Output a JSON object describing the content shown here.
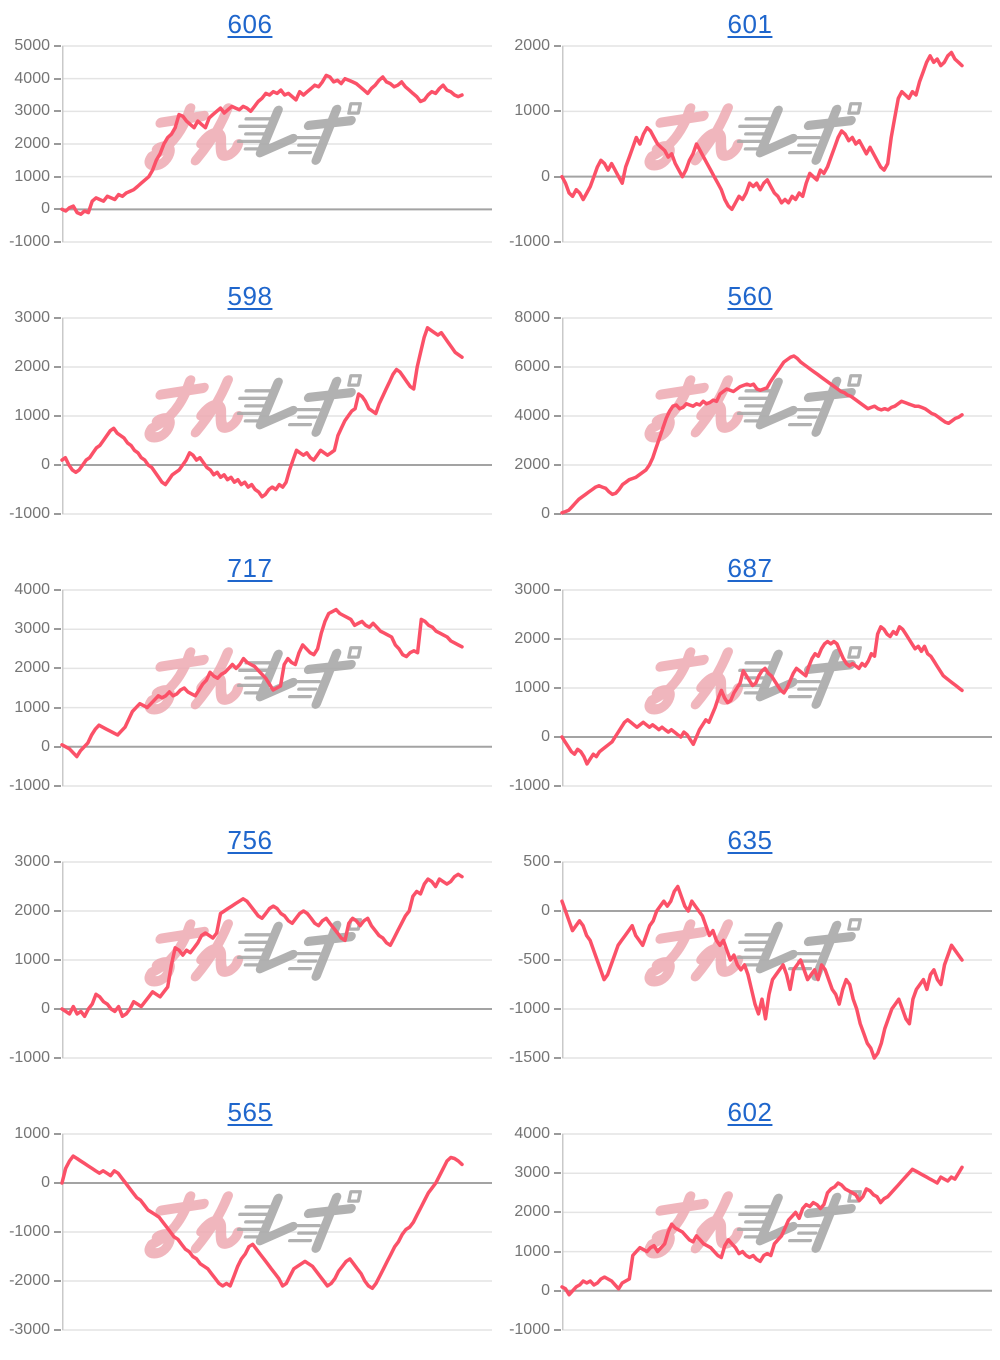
{
  "page": {
    "background": "#ffffff"
  },
  "watermark": {
    "pink_text": "みん",
    "gray_text": "レポ"
  },
  "styles": {
    "line_color": "#fb5168",
    "grid_color": "#e4e4e4",
    "zero_line_color": "#a3a3a3",
    "axis_color": "#c9c9c9",
    "tick_label_color": "#757575",
    "title_color": "#1f66cc",
    "watermark_pink": "#eeaab2",
    "watermark_gray": "#a9a9a9"
  },
  "chart_data": [
    {
      "type": "line",
      "title": "606",
      "ylim": [
        -1000,
        5000
      ],
      "yticks": [
        5000,
        4000,
        3000,
        2000,
        1000,
        0,
        -1000
      ],
      "values": [
        0,
        -50,
        50,
        100,
        -100,
        -150,
        -50,
        -100,
        250,
        350,
        300,
        250,
        400,
        350,
        300,
        450,
        400,
        500,
        550,
        600,
        700,
        800,
        900,
        1000,
        1200,
        1500,
        1700,
        2000,
        2200,
        2300,
        2500,
        2900,
        2850,
        2700,
        2600,
        2500,
        2700,
        2600,
        2500,
        2800,
        2900,
        3000,
        3100,
        2950,
        3050,
        3150,
        3100,
        3050,
        3150,
        3100,
        3000,
        3150,
        3300,
        3400,
        3550,
        3500,
        3600,
        3550,
        3650,
        3500,
        3550,
        3450,
        3350,
        3600,
        3500,
        3600,
        3700,
        3800,
        3750,
        3900,
        4100,
        4050,
        3900,
        3950,
        3850,
        4000,
        3950,
        3900,
        3850,
        3750,
        3650,
        3550,
        3700,
        3800,
        3950,
        4050,
        3900,
        3850,
        3750,
        3800,
        3900,
        3750,
        3650,
        3550,
        3450,
        3300,
        3350,
        3500,
        3600,
        3550,
        3700,
        3800,
        3650,
        3600,
        3500,
        3450,
        3500
      ]
    },
    {
      "type": "line",
      "title": "601",
      "ylim": [
        -1000,
        2000
      ],
      "yticks": [
        2000,
        1000,
        0,
        -1000
      ],
      "values": [
        0,
        -100,
        -250,
        -300,
        -200,
        -250,
        -350,
        -250,
        -150,
        0,
        150,
        250,
        200,
        100,
        200,
        100,
        0,
        -100,
        150,
        300,
        450,
        600,
        500,
        650,
        750,
        700,
        600,
        500,
        450,
        400,
        300,
        350,
        200,
        100,
        0,
        100,
        250,
        350,
        500,
        400,
        300,
        200,
        100,
        0,
        -100,
        -200,
        -350,
        -450,
        -500,
        -400,
        -300,
        -350,
        -250,
        -100,
        -150,
        -100,
        -200,
        -100,
        -50,
        -150,
        -250,
        -300,
        -400,
        -350,
        -400,
        -300,
        -350,
        -250,
        -300,
        -100,
        50,
        0,
        -50,
        100,
        50,
        150,
        300,
        450,
        600,
        700,
        650,
        550,
        600,
        500,
        550,
        450,
        350,
        450,
        350,
        250,
        150,
        100,
        200,
        600,
        900,
        1200,
        1300,
        1250,
        1200,
        1300,
        1250,
        1450,
        1600,
        1750,
        1850,
        1750,
        1800,
        1700,
        1750,
        1850,
        1900,
        1800,
        1750,
        1700
      ]
    },
    {
      "type": "line",
      "title": "598",
      "ylim": [
        -1000,
        3000
      ],
      "yticks": [
        3000,
        2000,
        1000,
        0,
        -1000
      ],
      "values": [
        100,
        150,
        0,
        -100,
        -150,
        -100,
        0,
        100,
        150,
        250,
        350,
        400,
        500,
        600,
        700,
        750,
        650,
        600,
        550,
        450,
        400,
        300,
        250,
        150,
        100,
        0,
        -50,
        -150,
        -250,
        -350,
        -400,
        -300,
        -200,
        -150,
        -100,
        0,
        100,
        250,
        200,
        100,
        150,
        50,
        -50,
        -100,
        -200,
        -150,
        -250,
        -200,
        -300,
        -250,
        -350,
        -300,
        -400,
        -350,
        -450,
        -400,
        -500,
        -550,
        -650,
        -600,
        -500,
        -450,
        -500,
        -400,
        -450,
        -350,
        -100,
        100,
        300,
        250,
        200,
        250,
        150,
        100,
        200,
        300,
        250,
        200,
        250,
        300,
        600,
        750,
        900,
        1000,
        1100,
        1150,
        1450,
        1400,
        1300,
        1150,
        1100,
        1050,
        1250,
        1400,
        1550,
        1700,
        1850,
        1950,
        1900,
        1800,
        1700,
        1600,
        1550,
        2000,
        2300,
        2600,
        2800,
        2750,
        2700,
        2650,
        2700,
        2600,
        2500,
        2400,
        2300,
        2250,
        2200
      ]
    },
    {
      "type": "line",
      "title": "560",
      "ylim": [
        0,
        8000
      ],
      "yticks": [
        8000,
        6000,
        4000,
        2000,
        0
      ],
      "values": [
        50,
        100,
        150,
        300,
        450,
        600,
        700,
        800,
        900,
        1000,
        1100,
        1150,
        1100,
        1050,
        900,
        800,
        850,
        1000,
        1200,
        1300,
        1400,
        1450,
        1500,
        1600,
        1700,
        1800,
        2000,
        2300,
        2700,
        3100,
        3500,
        3900,
        4200,
        4400,
        4450,
        4300,
        4350,
        4500,
        4450,
        4400,
        4500,
        4450,
        4600,
        4500,
        4550,
        4650,
        4600,
        4900,
        5000,
        5100,
        5050,
        5000,
        5100,
        5200,
        5250,
        5300,
        5250,
        5300,
        5100,
        5050,
        5100,
        5150,
        5400,
        5600,
        5800,
        6000,
        6200,
        6300,
        6400,
        6450,
        6350,
        6200,
        6100,
        6000,
        5900,
        5800,
        5700,
        5600,
        5500,
        5400,
        5300,
        5200,
        5100,
        5000,
        4950,
        4850,
        4800,
        4700,
        4600,
        4500,
        4400,
        4300,
        4350,
        4400,
        4300,
        4250,
        4300,
        4250,
        4350,
        4400,
        4500,
        4600,
        4550,
        4500,
        4450,
        4400,
        4400,
        4350,
        4300,
        4200,
        4100,
        4050,
        3950,
        3850,
        3750,
        3700,
        3800,
        3900,
        3950,
        4050
      ]
    },
    {
      "type": "line",
      "title": "717",
      "ylim": [
        -1000,
        4000
      ],
      "yticks": [
        4000,
        3000,
        2000,
        1000,
        0,
        -1000
      ],
      "values": [
        50,
        0,
        -50,
        -150,
        -250,
        -100,
        0,
        100,
        300,
        450,
        550,
        500,
        450,
        400,
        350,
        300,
        400,
        500,
        700,
        900,
        1000,
        1100,
        1050,
        1000,
        1100,
        1200,
        1300,
        1250,
        1300,
        1400,
        1300,
        1350,
        1450,
        1500,
        1400,
        1350,
        1300,
        1450,
        1600,
        1700,
        1900,
        1800,
        1750,
        1850,
        1900,
        2000,
        2100,
        2000,
        2100,
        2250,
        2150,
        2100,
        2050,
        1950,
        1850,
        1750,
        1600,
        1450,
        1500,
        1550,
        2100,
        2250,
        2150,
        2100,
        2400,
        2600,
        2500,
        2400,
        2350,
        2500,
        2900,
        3200,
        3400,
        3450,
        3500,
        3400,
        3350,
        3300,
        3250,
        3100,
        3150,
        3200,
        3100,
        3050,
        3150,
        3050,
        2950,
        2900,
        2850,
        2800,
        2600,
        2500,
        2350,
        2300,
        2400,
        2450,
        2400,
        3250,
        3200,
        3100,
        3050,
        2950,
        2900,
        2850,
        2800,
        2700,
        2650,
        2600,
        2550
      ]
    },
    {
      "type": "line",
      "title": "687",
      "ylim": [
        -1000,
        3000
      ],
      "yticks": [
        3000,
        2000,
        1000,
        0,
        -1000
      ],
      "values": [
        0,
        -100,
        -200,
        -300,
        -350,
        -250,
        -300,
        -400,
        -550,
        -450,
        -350,
        -400,
        -300,
        -250,
        -200,
        -150,
        -100,
        0,
        100,
        200,
        300,
        350,
        300,
        250,
        200,
        250,
        300,
        250,
        200,
        250,
        200,
        150,
        200,
        150,
        100,
        150,
        100,
        50,
        0,
        100,
        50,
        -50,
        -150,
        0,
        150,
        250,
        350,
        300,
        450,
        600,
        800,
        950,
        800,
        700,
        750,
        900,
        1000,
        1100,
        1350,
        1250,
        1150,
        1050,
        1100,
        1250,
        1350,
        1400,
        1300,
        1250,
        1150,
        1050,
        950,
        900,
        1000,
        1150,
        1300,
        1400,
        1350,
        1300,
        1250,
        1450,
        1600,
        1700,
        1650,
        1800,
        1900,
        1950,
        1900,
        1950,
        1900,
        1750,
        1600,
        1500,
        1450,
        1500,
        1450,
        1400,
        1500,
        1450,
        1550,
        1700,
        1650,
        2100,
        2250,
        2200,
        2100,
        2050,
        2150,
        2100,
        2250,
        2200,
        2100,
        2000,
        1900,
        1800,
        1850,
        1750,
        1850,
        1700,
        1650,
        1550,
        1450,
        1350,
        1250,
        1200,
        1150,
        1100,
        1050,
        1000,
        950
      ]
    },
    {
      "type": "line",
      "title": "756",
      "ylim": [
        -1000,
        3000
      ],
      "yticks": [
        3000,
        2000,
        1000,
        0,
        -1000
      ],
      "values": [
        0,
        -50,
        -100,
        50,
        -100,
        -50,
        -150,
        0,
        100,
        300,
        250,
        150,
        100,
        0,
        -50,
        50,
        -150,
        -100,
        0,
        150,
        100,
        50,
        150,
        250,
        350,
        300,
        250,
        350,
        450,
        900,
        1250,
        1200,
        1100,
        1200,
        1150,
        1250,
        1350,
        1500,
        1550,
        1500,
        1450,
        1550,
        1950,
        2000,
        2050,
        2100,
        2150,
        2200,
        2250,
        2200,
        2100,
        2000,
        1900,
        1850,
        1950,
        2050,
        2100,
        2050,
        1950,
        1900,
        1800,
        1750,
        1850,
        1950,
        2000,
        1950,
        1850,
        1750,
        1700,
        1800,
        1850,
        1750,
        1650,
        1550,
        1450,
        1400,
        1750,
        1850,
        1800,
        1700,
        1800,
        1850,
        1700,
        1600,
        1500,
        1450,
        1350,
        1300,
        1450,
        1600,
        1750,
        1900,
        2000,
        2300,
        2400,
        2350,
        2550,
        2650,
        2600,
        2500,
        2650,
        2600,
        2550,
        2600,
        2700,
        2750,
        2700
      ]
    },
    {
      "type": "line",
      "title": "635",
      "ylim": [
        -1500,
        500
      ],
      "yticks": [
        500,
        0,
        -500,
        -1000,
        -1500
      ],
      "values": [
        100,
        0,
        -100,
        -200,
        -150,
        -100,
        -150,
        -250,
        -300,
        -400,
        -500,
        -600,
        -700,
        -650,
        -550,
        -450,
        -350,
        -300,
        -250,
        -200,
        -150,
        -250,
        -300,
        -350,
        -250,
        -150,
        -100,
        0,
        50,
        100,
        50,
        100,
        200,
        250,
        150,
        50,
        0,
        100,
        50,
        0,
        -50,
        -150,
        -250,
        -200,
        -300,
        -350,
        -300,
        -400,
        -500,
        -450,
        -550,
        -600,
        -550,
        -650,
        -800,
        -950,
        -1050,
        -900,
        -1100,
        -850,
        -700,
        -650,
        -600,
        -550,
        -650,
        -800,
        -600,
        -550,
        -500,
        -600,
        -700,
        -650,
        -600,
        -700,
        -550,
        -600,
        -700,
        -800,
        -850,
        -950,
        -800,
        -700,
        -750,
        -900,
        -1000,
        -1150,
        -1250,
        -1350,
        -1400,
        -1500,
        -1450,
        -1350,
        -1200,
        -1100,
        -1000,
        -950,
        -900,
        -1000,
        -1100,
        -1150,
        -900,
        -800,
        -750,
        -700,
        -800,
        -650,
        -600,
        -700,
        -750,
        -550,
        -450,
        -350,
        -400,
        -450,
        -500
      ]
    },
    {
      "type": "line",
      "title": "565",
      "ylim": [
        -3000,
        1000
      ],
      "yticks": [
        1000,
        0,
        -1000,
        -2000,
        -3000
      ],
      "values": [
        0,
        300,
        450,
        550,
        500,
        450,
        400,
        350,
        300,
        250,
        200,
        250,
        200,
        150,
        250,
        200,
        100,
        0,
        -100,
        -200,
        -300,
        -350,
        -450,
        -550,
        -600,
        -650,
        -700,
        -800,
        -900,
        -1000,
        -1100,
        -1150,
        -1250,
        -1350,
        -1400,
        -1500,
        -1550,
        -1650,
        -1700,
        -1750,
        -1850,
        -1950,
        -2050,
        -2100,
        -2050,
        -2100,
        -1900,
        -1700,
        -1550,
        -1450,
        -1300,
        -1250,
        -1350,
        -1450,
        -1550,
        -1650,
        -1750,
        -1850,
        -1950,
        -2100,
        -2050,
        -1900,
        -1750,
        -1700,
        -1650,
        -1600,
        -1650,
        -1700,
        -1800,
        -1900,
        -2000,
        -2100,
        -2050,
        -1950,
        -1800,
        -1700,
        -1600,
        -1550,
        -1650,
        -1750,
        -1850,
        -2000,
        -2100,
        -2150,
        -2050,
        -1900,
        -1750,
        -1600,
        -1450,
        -1300,
        -1200,
        -1050,
        -950,
        -900,
        -800,
        -650,
        -500,
        -350,
        -200,
        -100,
        0,
        150,
        300,
        450,
        520,
        500,
        450,
        380
      ]
    },
    {
      "type": "line",
      "title": "602",
      "ylim": [
        -1000,
        4000
      ],
      "yticks": [
        4000,
        3000,
        2000,
        1000,
        0,
        -1000
      ],
      "values": [
        100,
        50,
        -100,
        0,
        100,
        150,
        250,
        200,
        250,
        150,
        200,
        300,
        350,
        300,
        250,
        150,
        50,
        200,
        250,
        300,
        900,
        1000,
        1100,
        1050,
        1000,
        1100,
        1150,
        1000,
        1100,
        1200,
        1500,
        1700,
        1600,
        1550,
        1500,
        1400,
        1300,
        1250,
        1400,
        1300,
        1200,
        1150,
        1100,
        1000,
        900,
        850,
        1150,
        1300,
        1200,
        1100,
        950,
        1000,
        900,
        850,
        900,
        800,
        750,
        900,
        950,
        900,
        1200,
        1300,
        1400,
        1600,
        1800,
        1900,
        2000,
        1850,
        2100,
        2200,
        2150,
        2250,
        2200,
        2100,
        2200,
        2500,
        2600,
        2650,
        2750,
        2700,
        2600,
        2550,
        2500,
        2450,
        2300,
        2400,
        2600,
        2550,
        2450,
        2400,
        2250,
        2350,
        2400,
        2500,
        2600,
        2700,
        2800,
        2900,
        3000,
        3100,
        3050,
        3000,
        2950,
        2900,
        2850,
        2800,
        2750,
        2900,
        2850,
        2800,
        2900,
        2850,
        3000,
        3150
      ]
    }
  ]
}
